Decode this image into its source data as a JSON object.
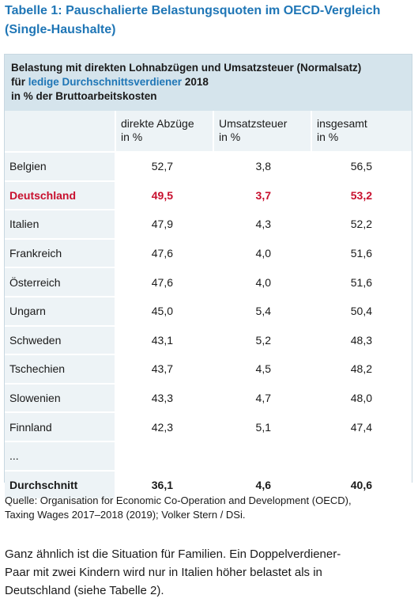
{
  "title": {
    "line1": "Tabelle 1: Pauschalierte Belastungsquoten im OECD-Vergleich",
    "line2": "(Single-Haushalte)"
  },
  "table_header": {
    "line1": "Belastung mit direkten Lohnabzügen und Umsatzsteuer (Normalsatz)",
    "line2_prefix": "für ",
    "line2_highlight": "ledige Durchschnittsverdiener",
    "line2_suffix": " 2018",
    "line3": "in % der Bruttoarbeitskosten"
  },
  "columns": [
    {
      "line1": "",
      "line2": ""
    },
    {
      "line1": "direkte Abzüge",
      "line2": "in %"
    },
    {
      "line1": "Umsatzsteuer",
      "line2": "in %"
    },
    {
      "line1": "insgesamt",
      "line2": "in %"
    }
  ],
  "rows": [
    {
      "land": "Belgien",
      "direkt": "52,7",
      "ust": "3,8",
      "gesamt": "56,5",
      "style": "normal"
    },
    {
      "land": "Deutschland",
      "direkt": "49,5",
      "ust": "3,7",
      "gesamt": "53,2",
      "style": "highlight"
    },
    {
      "land": "Italien",
      "direkt": "47,9",
      "ust": "4,3",
      "gesamt": "52,2",
      "style": "normal"
    },
    {
      "land": "Frankreich",
      "direkt": "47,6",
      "ust": "4,0",
      "gesamt": "51,6",
      "style": "normal"
    },
    {
      "land": "Österreich",
      "direkt": "47,6",
      "ust": "4,0",
      "gesamt": "51,6",
      "style": "normal"
    },
    {
      "land": "Ungarn",
      "direkt": "45,0",
      "ust": "5,4",
      "gesamt": "50,4",
      "style": "normal"
    },
    {
      "land": "Schweden",
      "direkt": "43,1",
      "ust": "5,2",
      "gesamt": "48,3",
      "style": "normal"
    },
    {
      "land": "Tschechien",
      "direkt": "43,7",
      "ust": "4,5",
      "gesamt": "48,2",
      "style": "normal"
    },
    {
      "land": "Slowenien",
      "direkt": "43,3",
      "ust": "4,7",
      "gesamt": "48,0",
      "style": "normal"
    },
    {
      "land": "Finnland",
      "direkt": "42,3",
      "ust": "5,1",
      "gesamt": "47,4",
      "style": "normal"
    },
    {
      "land": "...",
      "direkt": "",
      "ust": "",
      "gesamt": "",
      "style": "normal"
    },
    {
      "land": "Durchschnitt",
      "direkt": "36,1",
      "ust": "4,6",
      "gesamt": "40,6",
      "style": "total"
    }
  ],
  "source": {
    "line1": "Quelle: Organisation for Economic Co-Operation and Development (OECD),",
    "line2": "Taxing Wages 2017–2018 (2019); Volker Stern / DSi."
  },
  "body_text": {
    "line1": "Ganz ähnlich ist die Situation für Familien. Ein Doppelverdiener-",
    "line2": "Paar mit zwei Kindern wird nur in Italien höher belastet als in",
    "line3": "Deutschland (siehe Tabelle 2)."
  },
  "colors": {
    "accent": "#1f76b6",
    "highlight": "#c8102e",
    "header_bg": "#d5e4ec",
    "cell_bg": "#edf3f6"
  }
}
